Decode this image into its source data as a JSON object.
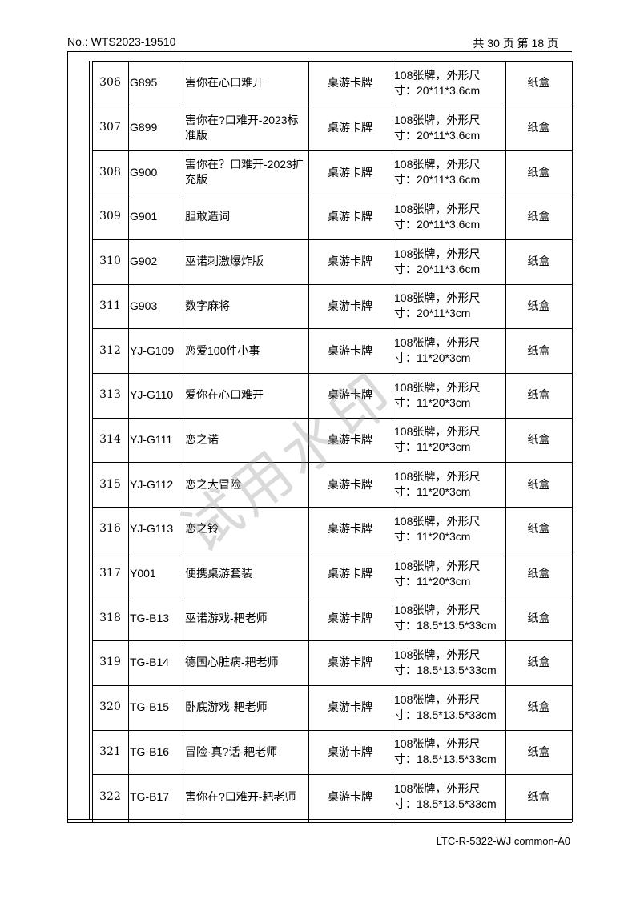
{
  "header": {
    "number": "No.: WTS2023-19510",
    "page": "共 30 页 第 18 页"
  },
  "table": {
    "rows": [
      {
        "no": "306",
        "code": "G895",
        "name": "害你在心口难开",
        "category": "桌游卡牌",
        "spec": [
          "108张牌，外形尺",
          "寸：20*11*3.6cm"
        ],
        "pack": "纸盒"
      },
      {
        "no": "307",
        "code": "G899",
        "name": "害你在?口难开-2023标准版",
        "category": "桌游卡牌",
        "spec": [
          "108张牌，外形尺",
          "寸：20*11*3.6cm"
        ],
        "pack": "纸盒"
      },
      {
        "no": "308",
        "code": "G900",
        "name": "害你在？口难开-2023扩充版",
        "category": "桌游卡牌",
        "spec": [
          "108张牌，外形尺",
          "寸：20*11*3.6cm"
        ],
        "pack": "纸盒"
      },
      {
        "no": "309",
        "code": "G901",
        "name": "胆敢造词",
        "category": "桌游卡牌",
        "spec": [
          "108张牌，外形尺",
          "寸：20*11*3.6cm"
        ],
        "pack": "纸盒"
      },
      {
        "no": "310",
        "code": "G902",
        "name": "巫诺刺激爆炸版",
        "category": "桌游卡牌",
        "spec": [
          "108张牌，外形尺",
          "寸：20*11*3.6cm"
        ],
        "pack": "纸盒"
      },
      {
        "no": "311",
        "code": "G903",
        "name": "数字麻将",
        "category": "桌游卡牌",
        "spec": [
          "108张牌，外形尺",
          "寸：20*11*3cm"
        ],
        "pack": "纸盒"
      },
      {
        "no": "312",
        "code": "YJ-G109",
        "name": "恋爱100件小事",
        "category": "桌游卡牌",
        "spec": [
          "108张牌，外形尺",
          "寸：11*20*3cm"
        ],
        "pack": "纸盒"
      },
      {
        "no": "313",
        "code": "YJ-G110",
        "name": "爱你在心口难开",
        "category": "桌游卡牌",
        "spec": [
          "108张牌，外形尺",
          "寸：11*20*3cm"
        ],
        "pack": "纸盒"
      },
      {
        "no": "314",
        "code": "YJ-G111",
        "name": "恋之诺",
        "category": "桌游卡牌",
        "spec": [
          "108张牌，外形尺",
          "寸：11*20*3cm"
        ],
        "pack": "纸盒"
      },
      {
        "no": "315",
        "code": "YJ-G112",
        "name": "恋之大冒险",
        "category": "桌游卡牌",
        "spec": [
          "108张牌，外形尺",
          "寸：11*20*3cm"
        ],
        "pack": "纸盒"
      },
      {
        "no": "316",
        "code": "YJ-G113",
        "name": "恋之铃",
        "category": "桌游卡牌",
        "spec": [
          "108张牌，外形尺",
          "寸：11*20*3cm"
        ],
        "pack": "纸盒"
      },
      {
        "no": "317",
        "code": "Y001",
        "name": "便携桌游套装",
        "category": "桌游卡牌",
        "spec": [
          "108张牌，外形尺",
          "寸：11*20*3cm"
        ],
        "pack": "纸盒"
      },
      {
        "no": "318",
        "code": "TG-B13",
        "name": "巫诺游戏-耙老师",
        "category": "桌游卡牌",
        "spec": [
          "108张牌，外形尺",
          "寸：18.5*13.5*33cm"
        ],
        "pack": "纸盒"
      },
      {
        "no": "319",
        "code": "TG-B14",
        "name": "德国心脏病-耙老师",
        "category": "桌游卡牌",
        "spec": [
          "108张牌，外形尺",
          "寸：18.5*13.5*33cm"
        ],
        "pack": "纸盒"
      },
      {
        "no": "320",
        "code": "TG-B15",
        "name": "卧底游戏-耙老师",
        "category": "桌游卡牌",
        "spec": [
          "108张牌，外形尺",
          "寸：18.5*13.5*33cm"
        ],
        "pack": "纸盒"
      },
      {
        "no": "321",
        "code": "TG-B16",
        "name": "冒险·真?话-耙老师",
        "category": "桌游卡牌",
        "spec": [
          "108张牌，外形尺",
          "寸：18.5*13.5*33cm"
        ],
        "pack": "纸盒"
      },
      {
        "no": "322",
        "code": "TG-B17",
        "name": "害你在?口难开-耙老师",
        "category": "桌游卡牌",
        "spec": [
          "108张牌，外形尺",
          "寸：18.5*13.5*33cm"
        ],
        "pack": "纸盒"
      }
    ]
  },
  "watermark": "试用水印",
  "footer": {
    "code": "LTC-R-5322-WJ  common-A0"
  }
}
